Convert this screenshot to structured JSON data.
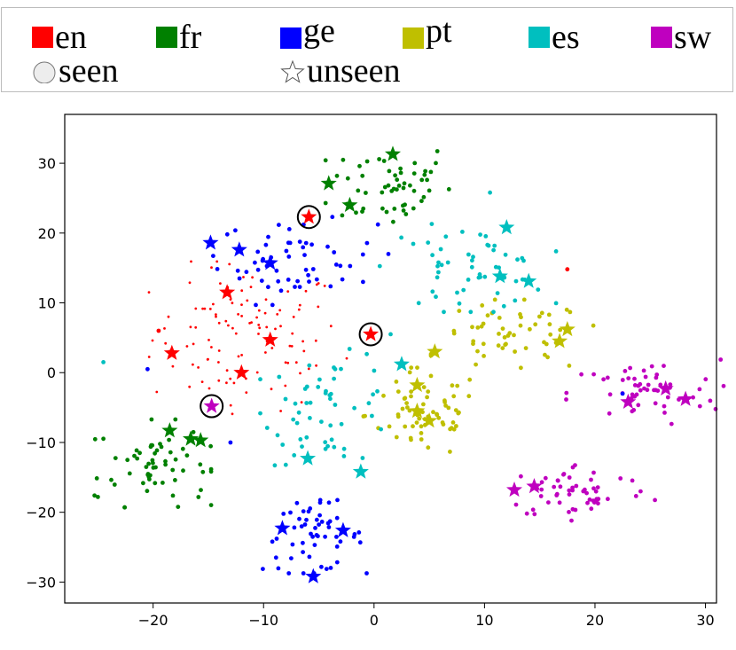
{
  "legend": {
    "languages": [
      {
        "key": "en",
        "label": "en",
        "color": "#ff0000"
      },
      {
        "key": "fr",
        "label": "fr",
        "color": "#008000"
      },
      {
        "key": "ge",
        "label": "ge",
        "color": "#0000ff"
      },
      {
        "key": "pt",
        "label": "pt",
        "color": "#bfbf00"
      },
      {
        "key": "es",
        "label": "es",
        "color": "#00bfbf"
      },
      {
        "key": "sw",
        "label": "sw",
        "color": "#bf00bf"
      }
    ],
    "markers": [
      {
        "key": "seen",
        "label": "seen",
        "icon": "circle-icon"
      },
      {
        "key": "unseen",
        "label": "unseen",
        "icon": "star-icon"
      }
    ]
  },
  "chart_data": {
    "type": "scatter",
    "title": "",
    "xlabel": "",
    "ylabel": "",
    "xlim": [
      -28,
      31
    ],
    "ylim": [
      -33,
      37
    ],
    "xticks": [
      -20,
      -10,
      0,
      10,
      20,
      30
    ],
    "yticks": [
      -30,
      -20,
      -10,
      0,
      10,
      20,
      30
    ],
    "grid": false,
    "legend_position": "top",
    "clusters": [
      {
        "lang": "en",
        "cx": -11.5,
        "cy": 5,
        "sx": 4.3,
        "sy": 5.2,
        "n": 110,
        "pointSize": "small"
      },
      {
        "lang": "fr",
        "cx": 1.5,
        "cy": 27,
        "sx": 2.8,
        "sy": 3.2,
        "n": 55
      },
      {
        "lang": "fr",
        "cx": -20,
        "cy": -13,
        "sx": 2.5,
        "sy": 3,
        "n": 60
      },
      {
        "lang": "ge",
        "cx": -7,
        "cy": 16,
        "sx": 3.6,
        "sy": 3,
        "n": 55
      },
      {
        "lang": "ge",
        "cx": -5.5,
        "cy": -23.5,
        "sx": 2.3,
        "sy": 2.5,
        "n": 55
      },
      {
        "lang": "pt",
        "cx": 4.5,
        "cy": -6,
        "sx": 2.6,
        "sy": 3.2,
        "n": 65
      },
      {
        "lang": "pt",
        "cx": 12.5,
        "cy": 5,
        "sx": 3.5,
        "sy": 2.6,
        "n": 55
      },
      {
        "lang": "es",
        "cx": -4,
        "cy": -5,
        "sx": 3,
        "sy": 4,
        "n": 55
      },
      {
        "lang": "es",
        "cx": 8.5,
        "cy": 15,
        "sx": 3.8,
        "sy": 3,
        "n": 55
      },
      {
        "lang": "sw",
        "cx": 24.5,
        "cy": -3,
        "sx": 3.4,
        "sy": 2.4,
        "n": 55
      },
      {
        "lang": "sw",
        "cx": 18.5,
        "cy": -17,
        "sx": 3.3,
        "sy": 2,
        "n": 55
      }
    ],
    "stars": [
      {
        "lang": "en",
        "x": -13.3,
        "y": 11.5
      },
      {
        "lang": "en",
        "x": -18.3,
        "y": 2.8
      },
      {
        "lang": "en",
        "x": -9.4,
        "y": 4.7
      },
      {
        "lang": "en",
        "x": -12,
        "y": 0
      },
      {
        "lang": "en",
        "x": -5.9,
        "y": 22.3,
        "circled": true
      },
      {
        "lang": "en",
        "x": -0.3,
        "y": 5.5,
        "circled": true
      },
      {
        "lang": "fr",
        "x": 1.7,
        "y": 31.3
      },
      {
        "lang": "fr",
        "x": -4.1,
        "y": 27.1
      },
      {
        "lang": "fr",
        "x": -2.2,
        "y": 24
      },
      {
        "lang": "fr",
        "x": -18.5,
        "y": -8.3
      },
      {
        "lang": "fr",
        "x": -16.6,
        "y": -9.5
      },
      {
        "lang": "fr",
        "x": -15.7,
        "y": -9.7
      },
      {
        "lang": "ge",
        "x": -14.8,
        "y": 18.6
      },
      {
        "lang": "ge",
        "x": -12.2,
        "y": 17.6
      },
      {
        "lang": "ge",
        "x": -9.4,
        "y": 15.7
      },
      {
        "lang": "ge",
        "x": -8.3,
        "y": -22.3
      },
      {
        "lang": "ge",
        "x": -2.8,
        "y": -22.6
      },
      {
        "lang": "ge",
        "x": -5.5,
        "y": -29.2
      },
      {
        "lang": "pt",
        "x": 3.9,
        "y": -1.8
      },
      {
        "lang": "pt",
        "x": 3.9,
        "y": -5.5
      },
      {
        "lang": "pt",
        "x": 5,
        "y": -6.9
      },
      {
        "lang": "pt",
        "x": 5.5,
        "y": 3
      },
      {
        "lang": "pt",
        "x": 17.5,
        "y": 6.2
      },
      {
        "lang": "pt",
        "x": 16.8,
        "y": 4.5
      },
      {
        "lang": "es",
        "x": 12,
        "y": 20.8
      },
      {
        "lang": "es",
        "x": 11.4,
        "y": 13.8
      },
      {
        "lang": "es",
        "x": 14,
        "y": 13.1
      },
      {
        "lang": "es",
        "x": 2.5,
        "y": 1.2
      },
      {
        "lang": "es",
        "x": -6,
        "y": -12.3
      },
      {
        "lang": "es",
        "x": -1.2,
        "y": -14.2
      },
      {
        "lang": "sw",
        "x": -14.7,
        "y": -4.8,
        "circled": true
      },
      {
        "lang": "sw",
        "x": 23,
        "y": -4.2
      },
      {
        "lang": "sw",
        "x": 26.4,
        "y": -2.3
      },
      {
        "lang": "sw",
        "x": 28.2,
        "y": -3.8
      },
      {
        "lang": "sw",
        "x": 12.7,
        "y": -16.8
      },
      {
        "lang": "sw",
        "x": 14.5,
        "y": -16.3
      }
    ],
    "strays": [
      {
        "lang": "es",
        "x": -24.5,
        "y": 1.5
      },
      {
        "lang": "es",
        "x": 10.5,
        "y": 25.8
      },
      {
        "lang": "ge",
        "x": -20.5,
        "y": 0.5
      },
      {
        "lang": "ge",
        "x": -1,
        "y": 13
      },
      {
        "lang": "ge",
        "x": 1.3,
        "y": 17
      },
      {
        "lang": "ge",
        "x": -13,
        "y": -10
      },
      {
        "lang": "fr",
        "x": -25.3,
        "y": -17.6
      },
      {
        "lang": "fr",
        "x": -25,
        "y": -17.8
      },
      {
        "lang": "en",
        "x": 17.5,
        "y": 14.8
      },
      {
        "lang": "en",
        "x": -19.5,
        "y": 6
      },
      {
        "lang": "ge",
        "x": 22.5,
        "y": -3
      },
      {
        "lang": "es",
        "x": 1.5,
        "y": 5.5
      }
    ]
  }
}
